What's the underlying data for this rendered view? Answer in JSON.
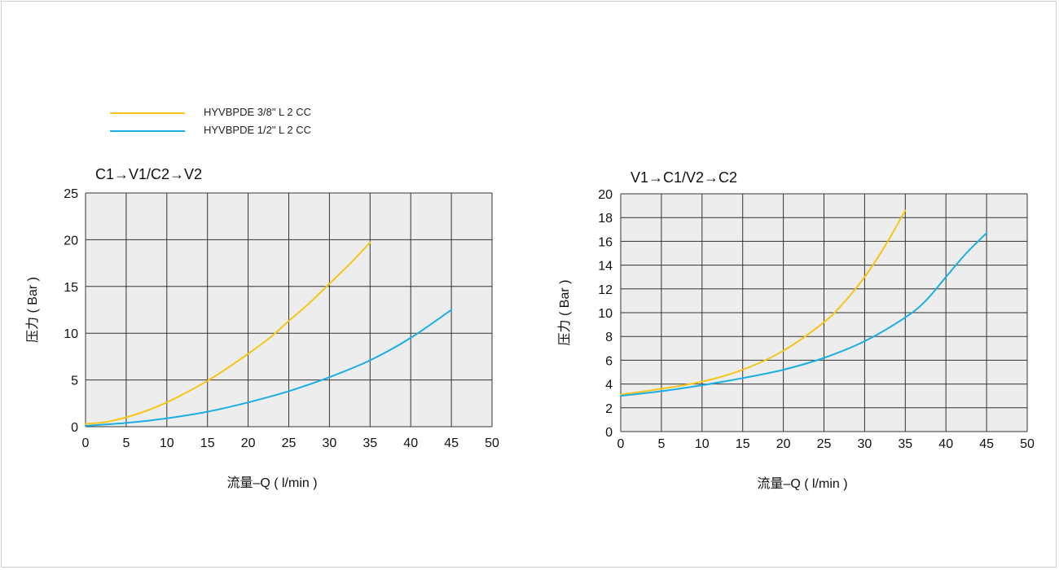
{
  "colors": {
    "page_border": "#cfcfcf",
    "plot_background": "#ededed",
    "grid": "#333333",
    "series_3_8": "#f5c518",
    "series_1_2": "#1aaee5"
  },
  "legend": {
    "items": [
      {
        "label": "HYVBPDE 3/8\" L 2 CC",
        "color": "#f5c518"
      },
      {
        "label": "HYVBPDE 1/2\" L 2 CC",
        "color": "#1aaee5"
      }
    ]
  },
  "chart_data": [
    {
      "type": "line",
      "title": "C1→V1/C2→V2",
      "xlabel": "流量–Q ( l/min )",
      "ylabel": "压力 ( Bar )",
      "xlim": [
        0,
        50
      ],
      "ylim": [
        0,
        25
      ],
      "xticks": [
        "0",
        "5",
        "10",
        "15",
        "20",
        "25",
        "30",
        "35",
        "40",
        "45",
        "50"
      ],
      "yticks": [
        "0",
        "5",
        "10",
        "15",
        "20",
        "25"
      ],
      "grid": true,
      "series": [
        {
          "name": "HYVBPDE 3/8\" L 2 CC",
          "color": "#f5c518",
          "x": [
            0,
            2.5,
            5,
            7.5,
            10,
            12.5,
            15,
            17.5,
            20,
            22.5,
            25,
            27.5,
            30,
            32.5,
            35
          ],
          "y": [
            0.3,
            0.5,
            1.0,
            1.7,
            2.6,
            3.7,
            4.9,
            6.3,
            7.8,
            9.4,
            11.3,
            13.2,
            15.3,
            17.4,
            19.7
          ]
        },
        {
          "name": "HYVBPDE 1/2\" L 2 CC",
          "color": "#1aaee5",
          "x": [
            0,
            5,
            10,
            15,
            20,
            25,
            30,
            35,
            40,
            45
          ],
          "y": [
            0.1,
            0.4,
            0.9,
            1.6,
            2.6,
            3.8,
            5.3,
            7.1,
            9.5,
            12.5
          ]
        }
      ]
    },
    {
      "type": "line",
      "title": "V1→C1/V2→C2",
      "xlabel": "流量–Q ( l/min )",
      "ylabel": "压力 ( Bar )",
      "xlim": [
        0,
        50
      ],
      "ylim": [
        0,
        20
      ],
      "xticks": [
        "0",
        "5",
        "10",
        "15",
        "20",
        "25",
        "30",
        "35",
        "40",
        "45",
        "50"
      ],
      "yticks": [
        "0",
        "2",
        "4",
        "6",
        "8",
        "10",
        "12",
        "14",
        "16",
        "18",
        "20"
      ],
      "grid": true,
      "series": [
        {
          "name": "HYVBPDE 3/8\" L 2 CC",
          "color": "#f5c518",
          "x": [
            0,
            5,
            10,
            15,
            20,
            25,
            27.5,
            30,
            32.5,
            35
          ],
          "y": [
            3.1,
            3.6,
            4.2,
            5.2,
            6.8,
            9.2,
            10.9,
            13.0,
            15.6,
            18.6
          ]
        },
        {
          "name": "HYVBPDE 1/2\" L 2 CC",
          "color": "#1aaee5",
          "x": [
            0,
            5,
            10,
            15,
            20,
            25,
            30,
            35,
            37.5,
            40,
            42.5,
            45
          ],
          "y": [
            3.0,
            3.4,
            3.9,
            4.5,
            5.2,
            6.2,
            7.6,
            9.6,
            11.0,
            13.0,
            15.0,
            16.7
          ]
        }
      ]
    }
  ]
}
